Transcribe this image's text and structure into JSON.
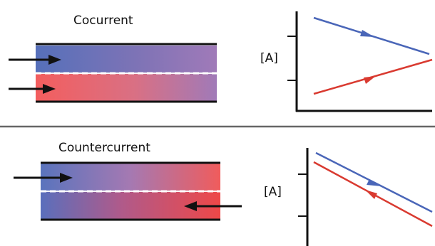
{
  "panels": [
    {
      "id": "cocurrent",
      "title": "Cocurrent",
      "ylabel": "[A]"
    },
    {
      "id": "countercurrent",
      "title": "Countercurrent",
      "ylabel": "[A]"
    }
  ],
  "colors": {
    "blue_stream": "#4a66b8",
    "red_stream": "#d93a30",
    "blue_fill": "#5a72bb",
    "red_fill": "#ef5a5a",
    "mix_fill": "#9b76b8"
  }
}
